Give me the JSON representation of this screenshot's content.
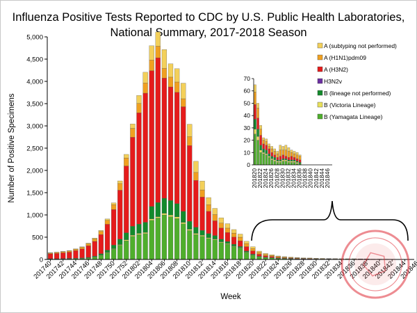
{
  "chart_data": {
    "type": "bar",
    "stacked": true,
    "title_line1": "Influenza Positive Tests Reported to CDC by U.S. Public Health Laboratories,",
    "title_line2": "National Summary, 2017-2018 Season",
    "xlabel": "Week",
    "ylabel": "Number of Positive Specimens",
    "ylim": [
      0,
      5000
    ],
    "y_ticks": [
      "0",
      "500",
      "1,000",
      "1,500",
      "2,000",
      "2,500",
      "3,000",
      "3,500",
      "4,000",
      "4,500",
      "5,000"
    ],
    "x_tick_labels": [
      "201740",
      "201742",
      "201744",
      "201746",
      "201748",
      "201750",
      "201752",
      "201802",
      "201804",
      "201806",
      "201808",
      "201810",
      "201812",
      "201814",
      "201816",
      "201818",
      "201820",
      "201822",
      "201824",
      "201826",
      "201828",
      "201830",
      "201832",
      "201834",
      "201836",
      "201838",
      "201840",
      "201842",
      "201844",
      "201846"
    ],
    "legend_position": "inside-right",
    "colors": {
      "b_yamagata": "#4fae2c",
      "b_victoria": "#e8e05a",
      "b_not_performed": "#138a2b",
      "h3n2v": "#6b2fa0",
      "a_h3n2": "#e51b1b",
      "a_h1n1": "#f0a020",
      "a_not_subtyped": "#f3d05a"
    },
    "series": [
      {
        "key": "b_yamagata",
        "name": "B (Yamagata Lineage)",
        "values": [
          10,
          10,
          12,
          15,
          18,
          22,
          30,
          50,
          90,
          150,
          230,
          320,
          420,
          520,
          560,
          580,
          880,
          930,
          1000,
          960,
          920,
          800,
          650,
          560,
          520,
          470,
          440,
          380,
          340,
          290,
          250,
          160,
          100,
          60,
          45,
          35,
          25,
          20,
          16,
          12,
          10,
          8,
          6,
          5,
          4,
          3,
          2,
          2,
          2,
          1,
          1,
          0,
          0,
          0,
          0,
          0,
          0,
          0
        ]
      },
      {
        "key": "b_victoria",
        "name": "B (Victoria Lineage)",
        "values": [
          2,
          2,
          2,
          3,
          3,
          4,
          5,
          6,
          8,
          10,
          12,
          15,
          20,
          25,
          25,
          25,
          30,
          30,
          35,
          35,
          35,
          30,
          28,
          25,
          22,
          20,
          18,
          16,
          14,
          12,
          10,
          8,
          6,
          4,
          3,
          3,
          2,
          2,
          1,
          1,
          1,
          1,
          1,
          1,
          1,
          1,
          1,
          1,
          1,
          1,
          1,
          0,
          0,
          0,
          0,
          0,
          0,
          0
        ]
      },
      {
        "key": "b_not_performed",
        "name": "B (lineage not performed)",
        "values": [
          4,
          4,
          5,
          6,
          8,
          10,
          12,
          20,
          30,
          50,
          80,
          120,
          160,
          200,
          210,
          230,
          280,
          320,
          340,
          330,
          300,
          250,
          180,
          140,
          110,
          90,
          80,
          60,
          50,
          40,
          30,
          20,
          15,
          8,
          6,
          5,
          4,
          3,
          3,
          2,
          2,
          2,
          1,
          1,
          1,
          1,
          1,
          1,
          1,
          1,
          1,
          0,
          0,
          0,
          0,
          0,
          0,
          0
        ]
      },
      {
        "key": "h3n2v",
        "name": "H3N2v",
        "values": [
          0,
          0,
          0,
          0,
          0,
          0,
          0,
          0,
          0,
          0,
          0,
          0,
          0,
          0,
          0,
          0,
          0,
          0,
          0,
          0,
          0,
          0,
          0,
          0,
          0,
          0,
          0,
          0,
          0,
          0,
          0,
          0,
          0,
          0,
          0,
          0,
          0,
          0,
          0,
          0,
          0,
          0,
          0,
          0,
          0,
          0,
          0,
          0,
          0,
          0,
          0,
          0,
          0,
          0,
          0,
          0,
          0,
          0
        ]
      },
      {
        "key": "a_h3n2",
        "name": "A (H3N2)",
        "values": [
          110,
          120,
          130,
          140,
          170,
          200,
          260,
          330,
          430,
          580,
          800,
          1100,
          1500,
          2000,
          2500,
          2900,
          3050,
          3250,
          2700,
          2550,
          2500,
          2350,
          1700,
          1050,
          750,
          500,
          330,
          250,
          200,
          160,
          130,
          100,
          70,
          45,
          30,
          22,
          15,
          12,
          10,
          8,
          6,
          6,
          5,
          4,
          4,
          3,
          3,
          3,
          3,
          2,
          2,
          2,
          2,
          1,
          1,
          1,
          1,
          1
        ]
      },
      {
        "key": "a_h1n1",
        "name": "A (H1N1)pdm09",
        "values": [
          20,
          22,
          25,
          28,
          32,
          38,
          45,
          55,
          70,
          90,
          110,
          150,
          180,
          200,
          210,
          230,
          240,
          260,
          220,
          220,
          230,
          180,
          200,
          180,
          160,
          150,
          140,
          110,
          100,
          90,
          80,
          70,
          55,
          40,
          30,
          25,
          20,
          16,
          14,
          12,
          10,
          9,
          8,
          7,
          6,
          6,
          5,
          5,
          5,
          4,
          4,
          3,
          3,
          3,
          2,
          2,
          2,
          2
        ]
      },
      {
        "key": "a_not_subtyped",
        "name": "A (subtyping not performed)",
        "values": [
          5,
          5,
          6,
          7,
          8,
          10,
          15,
          20,
          25,
          30,
          40,
          60,
          80,
          100,
          180,
          240,
          320,
          320,
          420,
          300,
          300,
          350,
          280,
          250,
          200,
          160,
          140,
          120,
          100,
          80,
          70,
          50,
          40,
          30,
          20,
          15,
          12,
          10,
          9,
          8,
          8,
          7,
          6,
          6,
          5,
          5,
          5,
          4,
          4,
          4,
          3,
          3,
          3,
          3,
          2,
          2,
          2,
          2
        ]
      }
    ],
    "inset": {
      "ylim": [
        0,
        70
      ],
      "y_ticks": [
        "0",
        "10",
        "20",
        "30",
        "40",
        "50",
        "60",
        "70"
      ],
      "x_tick_labels": [
        "201820",
        "201822",
        "201824",
        "201826",
        "201828",
        "201830",
        "201832",
        "201834",
        "201836",
        "201838",
        "201840",
        "201842",
        "201844",
        "201846"
      ],
      "series": [
        {
          "key": "b_yamagata",
          "values": [
            25,
            20,
            10,
            9,
            8,
            6,
            4,
            3,
            2,
            2,
            3,
            3,
            2,
            2,
            2,
            1,
            1
          ]
        },
        {
          "key": "b_victoria",
          "values": [
            4,
            3,
            2,
            1,
            1,
            1,
            1,
            1,
            1,
            1,
            1,
            1,
            1,
            1,
            1,
            1,
            0
          ]
        },
        {
          "key": "b_not_performed",
          "values": [
            8,
            6,
            4,
            3,
            3,
            2,
            2,
            2,
            1,
            1,
            1,
            1,
            1,
            1,
            1,
            1,
            1
          ]
        },
        {
          "key": "h3n2v",
          "values": [
            0,
            0,
            0,
            0,
            0,
            0,
            0,
            0,
            0,
            0,
            0,
            0,
            0,
            0,
            0,
            0,
            0
          ]
        },
        {
          "key": "a_h3n2",
          "values": [
            12,
            9,
            8,
            4,
            4,
            4,
            3,
            2,
            2,
            3,
            3,
            2,
            2,
            3,
            2,
            2,
            2
          ]
        },
        {
          "key": "a_h1n1",
          "values": [
            10,
            8,
            5,
            3,
            3,
            2,
            3,
            3,
            3,
            5,
            4,
            5,
            5,
            3,
            3,
            3,
            3
          ]
        },
        {
          "key": "a_not_subtyped",
          "values": [
            6,
            4,
            3,
            2,
            2,
            2,
            2,
            2,
            2,
            4,
            3,
            4,
            3,
            2,
            2,
            2,
            1
          ]
        }
      ]
    },
    "stamp_text": "CERTIFIED COPY PROTECTED · Dr. Bahadur Hassan"
  }
}
